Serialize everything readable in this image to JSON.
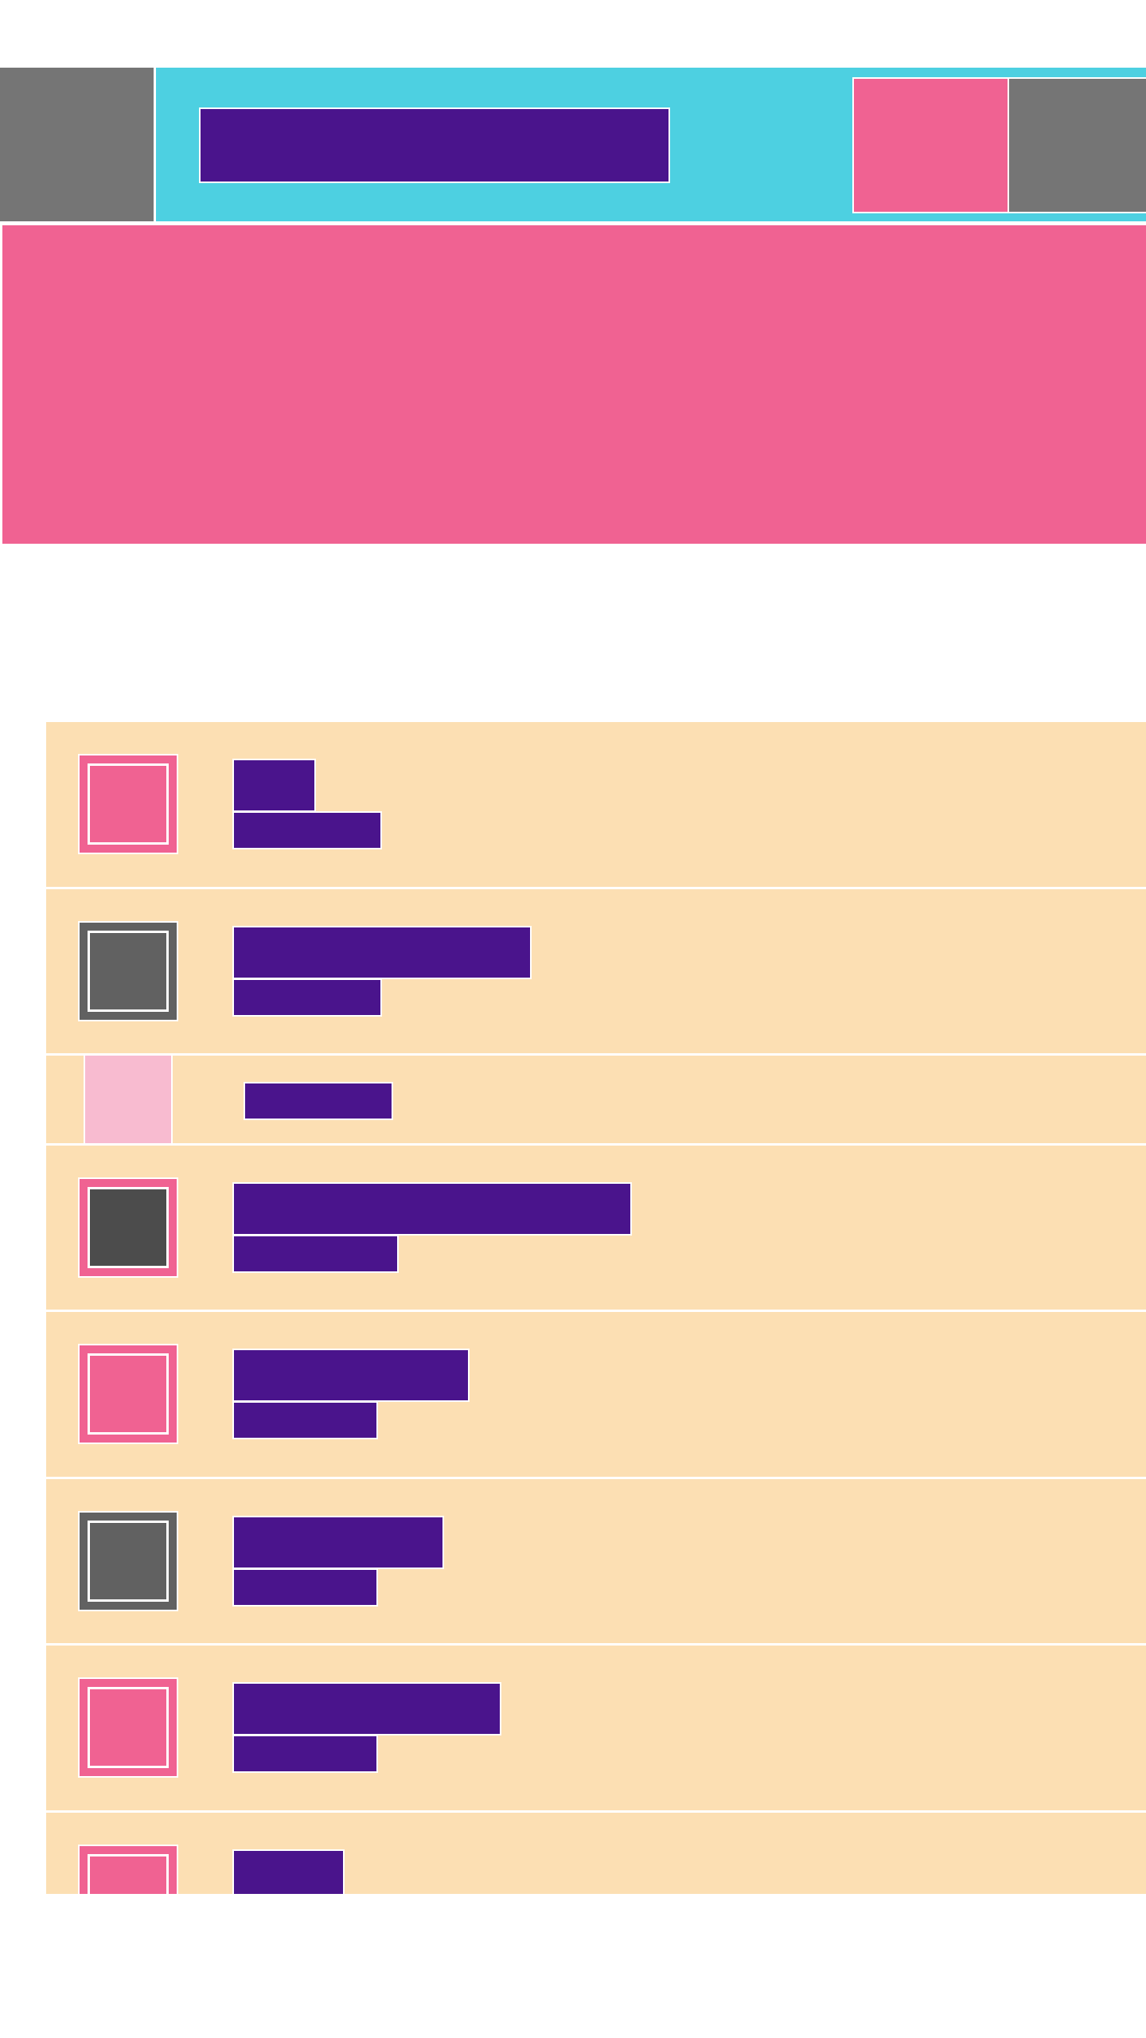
{
  "header": {
    "title": "",
    "action_1_icon": "",
    "action_2_icon": "",
    "menu_icon": ""
  },
  "hero": {
    "label": ""
  },
  "list": {
    "items": [
      {
        "title": "",
        "subtitle": "",
        "avatar_style": "pink"
      },
      {
        "title": "",
        "subtitle": "",
        "avatar_style": "grey"
      },
      {
        "title": "",
        "avatar_style": "light-pink-thumb"
      },
      {
        "title": "",
        "subtitle": "",
        "avatar_style": "pink-dark"
      },
      {
        "title": "",
        "subtitle": "",
        "avatar_style": "pink"
      },
      {
        "title": "",
        "subtitle": "",
        "avatar_style": "grey"
      },
      {
        "title": "",
        "subtitle": "",
        "avatar_style": "pink"
      },
      {
        "title": "",
        "avatar_style": "pink"
      }
    ]
  },
  "colors": {
    "header_bg": "#4dd0e1",
    "accent_pink": "#f06292",
    "text_purple": "#4a148c",
    "list_bg": "#fcdfb3",
    "grey": "#757575",
    "light_pink": "#f8bbd0"
  }
}
